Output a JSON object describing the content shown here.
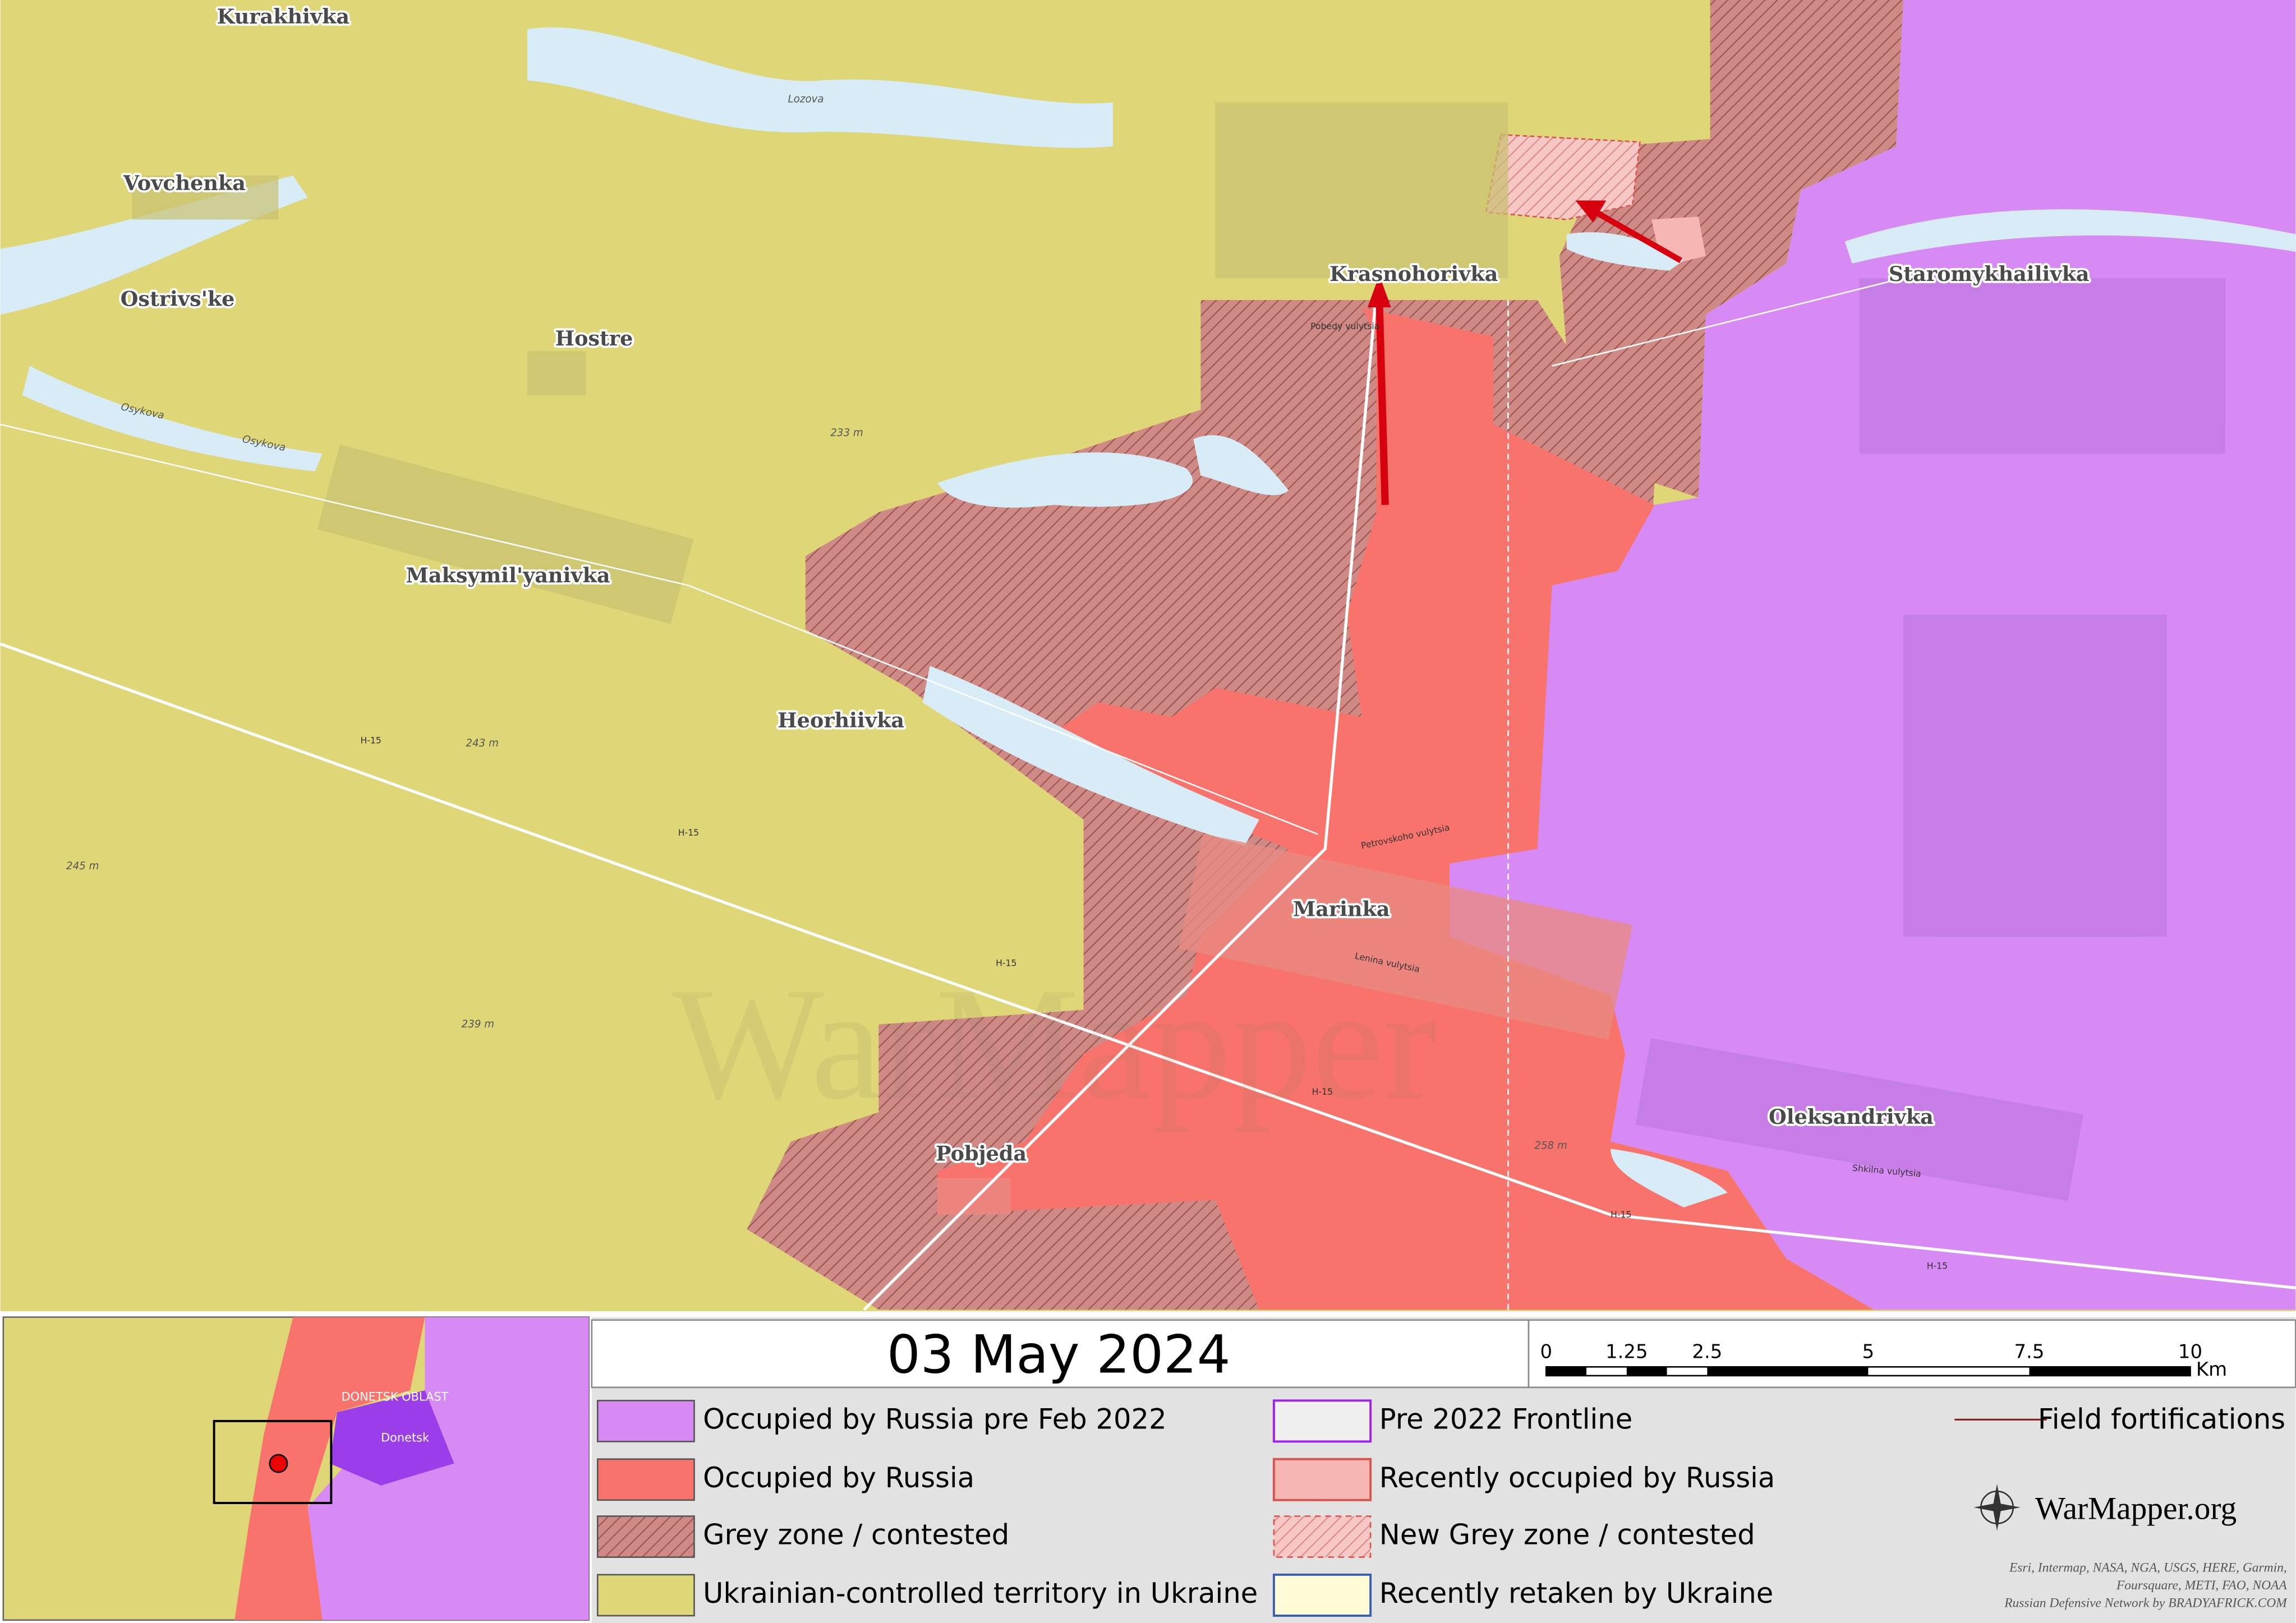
{
  "map": {
    "places": [
      "Kurakhivka",
      "Vovchenka",
      "Ostrivs'ke",
      "Hostre",
      "Maksymil'yanivka",
      "Heorhiivka",
      "Krasnohorivka",
      "Staromykhailivka",
      "Marinka",
      "Oleksandrivka",
      "Pobjeda"
    ],
    "waters": [
      "Lozova",
      "Osykova",
      "Osykova"
    ],
    "roads": [
      "H-15",
      "H-15",
      "H-15",
      "H-15",
      "H-15",
      "H-15"
    ],
    "streets": [
      "Petrovskoho vulytsia",
      "Lenina vulytsia",
      "Shkilna vulytsia",
      "Pobedy vulytsia"
    ],
    "elevations": [
      "233 m",
      "243 m",
      "245 m",
      "239 m",
      "258 m"
    ],
    "watermark": "WarMapper"
  },
  "inset": {
    "labels": [
      "DONETSK OBLAST",
      "Donetsk"
    ]
  },
  "date": "03 May 2024",
  "scale": {
    "ticks": [
      "0",
      "1.25",
      "2.5",
      "5",
      "7.5",
      "10"
    ],
    "unit": "Km"
  },
  "legend": {
    "items": [
      "Occupied by Russia pre Feb 2022",
      "Occupied by Russia",
      "Grey zone / contested",
      "Ukrainian-controlled territory in Ukraine",
      "Pre 2022 Frontline",
      "Recently occupied by Russia",
      "New Grey zone / contested",
      "Recently retaken by Ukraine",
      "Field fortifications"
    ]
  },
  "brand": "WarMapper.org",
  "credits": [
    "Esri, Intermap, NASA, NGA, USGS, HERE, Garmin,",
    "Foursquare, METI, FAO, NOAA",
    "Russian Defensive Network by BRADYAFRICK.COM"
  ]
}
